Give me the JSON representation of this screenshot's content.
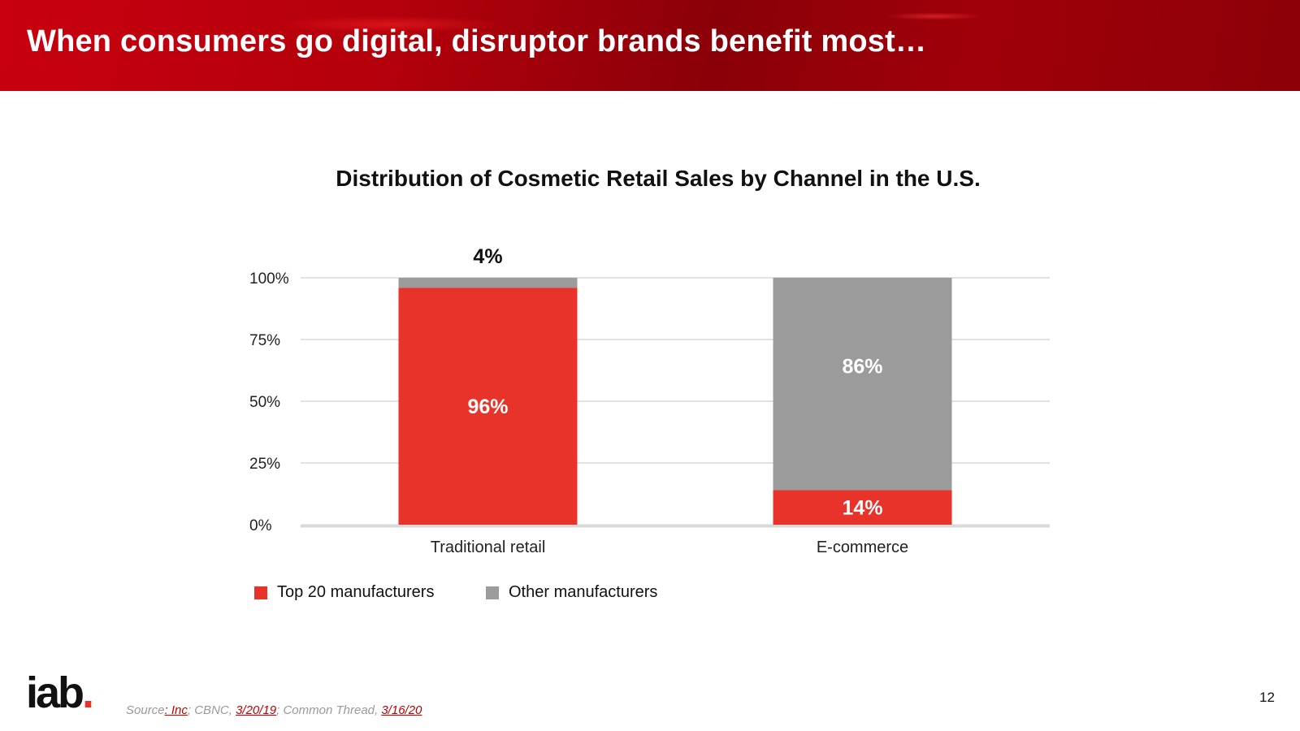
{
  "slide": {
    "title": "When consumers go digital, disruptor brands benefit most…",
    "page_number": "12"
  },
  "logo": {
    "text": "iab",
    "dot": "."
  },
  "source": {
    "prefix": "Source",
    "link1": ": Inc",
    "mid1": "; CBNC, ",
    "link2": "3/20/19",
    "mid2": "; Common Thread, ",
    "link3": "3/16/20"
  },
  "colors": {
    "top20": "#e8332a",
    "other": "#9b9b9b",
    "header": "#b4000c"
  },
  "chart_data": {
    "type": "bar",
    "stacked": true,
    "percent": true,
    "title": "Distribution of Cosmetic Retail Sales by Channel in the U.S.",
    "categories": [
      "Traditional retail",
      "E-commerce"
    ],
    "series": [
      {
        "name": "Top 20 manufacturers",
        "values": [
          96,
          14
        ],
        "labels": [
          "96%",
          "14%"
        ],
        "color": "#e8332a"
      },
      {
        "name": "Other manufacturers",
        "values": [
          4,
          86
        ],
        "labels": [
          "4%",
          "86%"
        ],
        "color": "#9b9b9b"
      }
    ],
    "yticks": [
      "0%",
      "25%",
      "50%",
      "75%",
      "100%"
    ],
    "ylim": [
      0,
      100
    ],
    "legend_position": "bottom-left",
    "grid": true
  }
}
